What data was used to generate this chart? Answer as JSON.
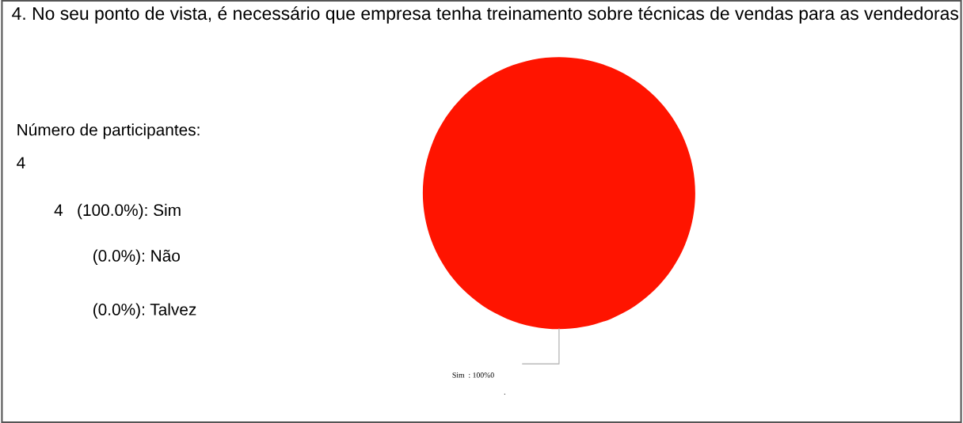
{
  "chart_data": {
    "type": "pie",
    "title": "4. No seu ponto de vista, é necessário que empresa tenha treinamento sobre técnicas de vendas para as vendedoras",
    "categories": [
      "Sim",
      "Não",
      "Talvez"
    ],
    "values": [
      100,
      0,
      0
    ],
    "colors": [
      "#ff1400",
      "#2f5fb3",
      "#3a9a3a"
    ],
    "value_labels": [
      "Sim  : 100%0",
      null,
      null
    ],
    "annotations": [
      "Número de participantes:",
      "4",
      "4   (100.0%): ",
      "(0.0%): ",
      "(0.0%): ",
      "."
    ],
    "legend": false
  }
}
